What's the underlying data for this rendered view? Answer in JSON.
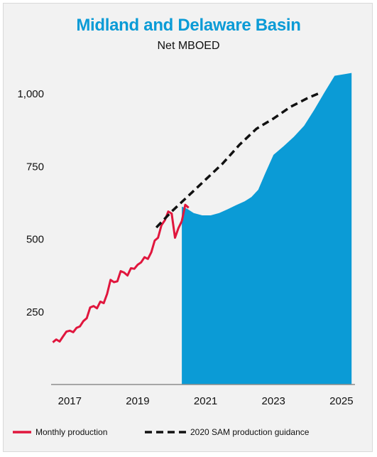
{
  "chart_data": {
    "type": "area",
    "title": "Midland and Delaware Basin",
    "subtitle": "Net MBOED",
    "xlabel": "",
    "ylabel": "",
    "xlim": [
      2016.45,
      2025.4
    ],
    "ylim": [
      0,
      1100
    ],
    "y_ticks": [
      250,
      500,
      750,
      1000
    ],
    "y_tick_labels": [
      "250",
      "500",
      "750",
      "1,000"
    ],
    "x_ticks": [
      2017,
      2019,
      2021,
      2023,
      2025
    ],
    "x_tick_labels": [
      "2017",
      "2019",
      "2021",
      "2023",
      "2025"
    ],
    "grid": false,
    "legend_position": "bottom",
    "series": [
      {
        "name": "Monthly production",
        "kind": "line",
        "color": "#e0163d",
        "x": [
          2016.5,
          2016.6,
          2016.7,
          2016.8,
          2016.9,
          2017.0,
          2017.1,
          2017.2,
          2017.3,
          2017.4,
          2017.5,
          2017.6,
          2017.7,
          2017.8,
          2017.9,
          2018.0,
          2018.1,
          2018.2,
          2018.3,
          2018.4,
          2018.5,
          2018.6,
          2018.7,
          2018.8,
          2018.9,
          2019.0,
          2019.1,
          2019.2,
          2019.3,
          2019.4,
          2019.5,
          2019.6,
          2019.7,
          2019.8,
          2019.9,
          2020.0,
          2020.1,
          2020.2,
          2020.3
        ],
        "values": [
          145,
          155,
          148,
          165,
          182,
          185,
          180,
          195,
          200,
          218,
          228,
          265,
          270,
          262,
          285,
          280,
          312,
          360,
          352,
          355,
          390,
          385,
          375,
          400,
          398,
          412,
          420,
          438,
          432,
          455,
          495,
          505,
          548,
          565,
          595,
          588,
          505,
          538,
          562
        ]
      },
      {
        "name": "2020 SAM production guidance",
        "kind": "dashed-line",
        "color": "#111111",
        "x": [
          2019.55,
          2020.0,
          2020.5,
          2021.0,
          2021.5,
          2022.0,
          2022.5,
          2023.0,
          2023.5,
          2024.0,
          2024.4
        ],
        "values": [
          540,
          595,
          650,
          705,
          760,
          825,
          880,
          915,
          955,
          985,
          1005
        ]
      },
      {
        "name": "",
        "kind": "area",
        "color": "#0b9bd6",
        "x": [
          2020.3,
          2020.45,
          2020.65,
          2020.9,
          2021.15,
          2021.4,
          2021.65,
          2021.9,
          2022.15,
          2022.35,
          2022.55,
          2022.75,
          2023.0,
          2023.3,
          2023.6,
          2023.9,
          2024.2,
          2024.5,
          2024.8,
          2025.1,
          2025.3
        ],
        "values": [
          612,
          605,
          590,
          582,
          582,
          590,
          603,
          617,
          630,
          645,
          670,
          725,
          790,
          820,
          852,
          890,
          945,
          1005,
          1062,
          1068,
          1072
        ]
      }
    ],
    "tail_points": {
      "x": [
        2020.3,
        2020.4,
        2020.5
      ],
      "values": [
        562,
        618,
        608
      ]
    }
  }
}
